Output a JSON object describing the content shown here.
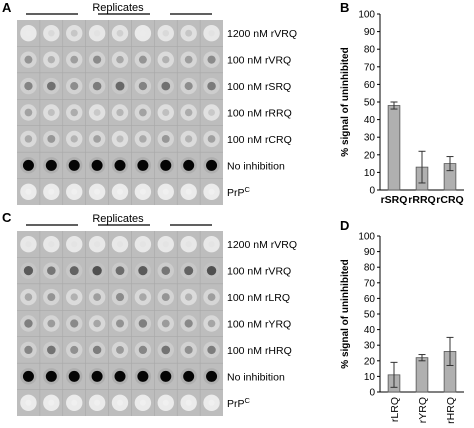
{
  "panels": {
    "A": {
      "letter": "A",
      "replicates_label": "Replicates",
      "rows": [
        {
          "label": "1200 nM rVRQ",
          "intensity": 0.1
        },
        {
          "label": "100 nM rVRQ",
          "intensity": 0.35
        },
        {
          "label": "100 nM rSRQ",
          "intensity": 0.5
        },
        {
          "label": "100 nM rRRQ",
          "intensity": 0.25
        },
        {
          "label": "100 nM rCRQ",
          "intensity": 0.3
        },
        {
          "label": "No inhibition",
          "intensity": 1.0
        },
        {
          "label": "PrP",
          "sup": "C",
          "intensity": 0.0
        }
      ]
    },
    "C": {
      "letter": "C",
      "replicates_label": "Replicates",
      "rows": [
        {
          "label": "1200 nM rVRQ",
          "intensity": 0.05
        },
        {
          "label": "100 nM rVRQ",
          "intensity": 0.6
        },
        {
          "label": "100 nM rLRQ",
          "intensity": 0.35
        },
        {
          "label": "100 nM rYRQ",
          "intensity": 0.4
        },
        {
          "label": "100 nM rHRQ",
          "intensity": 0.45
        },
        {
          "label": "No inhibition",
          "intensity": 1.0
        },
        {
          "label": "PrP",
          "sup": "C",
          "intensity": 0.0
        }
      ]
    }
  },
  "chart_data": [
    {
      "panel": "B",
      "type": "bar",
      "ylabel": "% signal of uninhibited",
      "ylim": [
        0,
        100
      ],
      "yticks": [
        0,
        10,
        20,
        30,
        40,
        50,
        60,
        70,
        80,
        90,
        100
      ],
      "categories": [
        "rSRQ",
        "rRRQ",
        "rCRQ"
      ],
      "values": [
        48,
        13,
        15
      ],
      "errors": [
        2,
        9,
        4
      ],
      "bar_color": "#b0b0b0"
    },
    {
      "panel": "D",
      "type": "bar",
      "ylabel": "% signal of uninhibited",
      "ylim": [
        0,
        100
      ],
      "yticks": [
        0,
        10,
        20,
        30,
        40,
        50,
        60,
        70,
        80,
        90,
        100
      ],
      "categories": [
        "rLRQ",
        "rYRQ",
        "rHRQ"
      ],
      "values": [
        11,
        22,
        26
      ],
      "errors": [
        8,
        2,
        9
      ],
      "bar_color": "#b0b0b0"
    }
  ]
}
